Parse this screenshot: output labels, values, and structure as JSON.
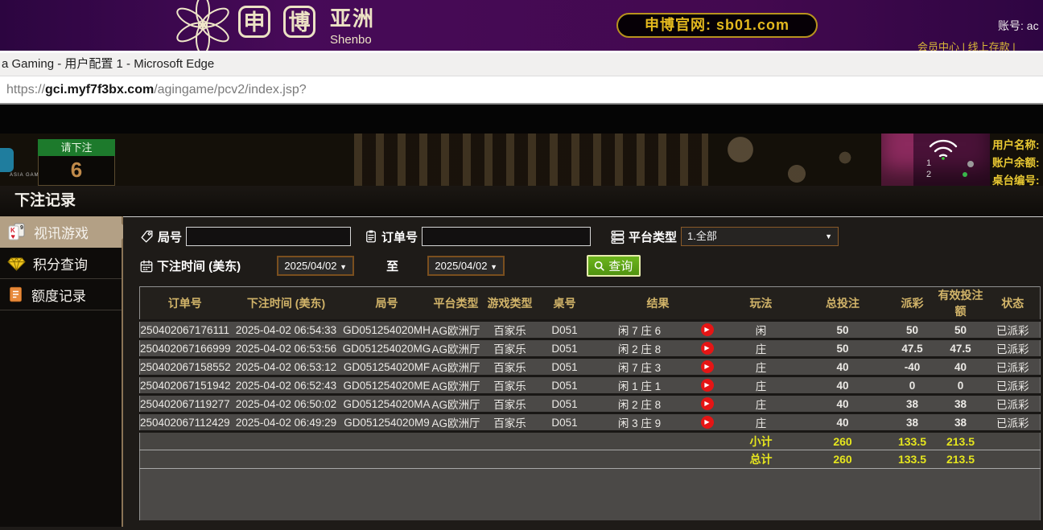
{
  "banner": {
    "logo_shen": "申",
    "logo_bo": "博",
    "logo_region": "亚洲",
    "logo_sub": "Shenbo",
    "official_site": "申博官网: sb01.com",
    "account": "账号: ac",
    "links": "会员中心 | 线上存款 |"
  },
  "browser": {
    "window_title": "a Gaming - 用户配置 1 - Microsoft Edge",
    "url_scheme": "https://",
    "url_host": "gci.myf7f3bx.com",
    "url_path": "/agingame/pcv2/index.jsp?"
  },
  "game_strip": {
    "brand": "ASIA GAMING",
    "bet_prompt": "请下注",
    "countdown": "6",
    "num1": "1",
    "num2": "2",
    "user_label": "用户名称:",
    "balance_label": "账户余额:",
    "table_label": "桌台编号:"
  },
  "panel": {
    "title": "下注记录"
  },
  "sidebar": {
    "items": [
      {
        "label": "视讯游戏",
        "active": true
      },
      {
        "label": "积分查询",
        "active": false
      },
      {
        "label": "额度记录",
        "active": false
      }
    ]
  },
  "filters": {
    "round_label": "局号",
    "order_label": "订单号",
    "platform_label": "平台类型",
    "platform_value": "1.全部",
    "time_label": "下注时间 (美东)",
    "date_from": "2025/04/02",
    "to_label": "至",
    "date_to": "2025/04/02",
    "search_label": "查询"
  },
  "table": {
    "headers": [
      "订单号",
      "下注时间 (美东)",
      "局号",
      "平台类型",
      "游戏类型",
      "桌号",
      "结果",
      "玩法",
      "总投注",
      "派彩",
      "有效投注额",
      "状态"
    ],
    "rows": [
      {
        "order": "250402067176111",
        "time": "2025-04-02 06:54:33",
        "round": "GD051254020MH",
        "platform": "AG欧洲厅",
        "game": "百家乐",
        "table_no": "D051",
        "result": "闲 7 庄 6",
        "play": "闲",
        "total": "50",
        "payout": "50",
        "payout_color": "red",
        "valid": "50",
        "status": "已派彩"
      },
      {
        "order": "250402067166999",
        "time": "2025-04-02 06:53:56",
        "round": "GD051254020MG",
        "platform": "AG欧洲厅",
        "game": "百家乐",
        "table_no": "D051",
        "result": "闲 2 庄 8",
        "play": "庄",
        "total": "50",
        "payout": "47.5",
        "payout_color": "red",
        "valid": "47.5",
        "status": "已派彩"
      },
      {
        "order": "250402067158552",
        "time": "2025-04-02 06:53:12",
        "round": "GD051254020MF",
        "platform": "AG欧洲厅",
        "game": "百家乐",
        "table_no": "D051",
        "result": "闲 7 庄 3",
        "play": "庄",
        "total": "40",
        "payout": "-40",
        "payout_color": "green",
        "valid": "40",
        "status": "已派彩"
      },
      {
        "order": "250402067151942",
        "time": "2025-04-02 06:52:43",
        "round": "GD051254020ME",
        "platform": "AG欧洲厅",
        "game": "百家乐",
        "table_no": "D051",
        "result": "闲 1 庄 1",
        "play": "庄",
        "total": "40",
        "payout": "0",
        "payout_color": "white",
        "valid": "0",
        "status": "已派彩"
      },
      {
        "order": "250402067119277",
        "time": "2025-04-02 06:50:02",
        "round": "GD051254020MA",
        "platform": "AG欧洲厅",
        "game": "百家乐",
        "table_no": "D051",
        "result": "闲 2 庄 8",
        "play": "庄",
        "total": "40",
        "payout": "38",
        "payout_color": "red",
        "valid": "38",
        "status": "已派彩"
      },
      {
        "order": "250402067112429",
        "time": "2025-04-02 06:49:29",
        "round": "GD051254020M9",
        "platform": "AG欧洲厅",
        "game": "百家乐",
        "table_no": "D051",
        "result": "闲 3 庄 9",
        "play": "庄",
        "total": "40",
        "payout": "38",
        "payout_color": "red",
        "valid": "38",
        "status": "已派彩"
      }
    ],
    "subtotal": {
      "label": "小计",
      "total": "260",
      "payout": "133.5",
      "valid": "213.5"
    },
    "grand_total": {
      "label": "总计",
      "total": "260",
      "payout": "133.5",
      "valid": "213.5"
    }
  },
  "colors": {
    "accent_gold": "#d2b469",
    "active_tab_tan": "#b3a085",
    "payout_red": "#cf2d4c",
    "payout_green": "#3ddc3d",
    "status_green": "#28e028",
    "total_yellow": "#e6e61e",
    "search_green": "#5ca315",
    "banner_purple": "#43094f"
  }
}
